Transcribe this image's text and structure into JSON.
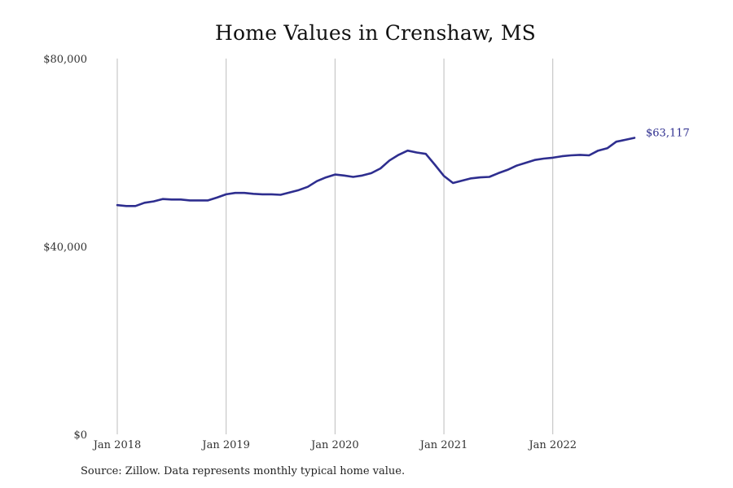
{
  "chart_data": {
    "type": "line",
    "title": "Home Values in Crenshaw, MS",
    "xlabel": "",
    "ylabel": "",
    "x_tick_labels": [
      "Jan 2018",
      "Jan 2019",
      "Jan 2020",
      "Jan 2021",
      "Jan 2022"
    ],
    "y_tick_labels": [
      "$0",
      "$40,000",
      "$80,000"
    ],
    "y_ticks": [
      0,
      40000,
      80000
    ],
    "ylim": [
      0,
      80000
    ],
    "x_range": [
      "2018-01",
      "2022-10"
    ],
    "grid": "vertical lines at January of each year",
    "legend": "none",
    "end_label": "$63,117",
    "line_color": "#2e2e8f",
    "series": [
      {
        "x": [
          "2018-01",
          "2018-02",
          "2018-03",
          "2018-04",
          "2018-05",
          "2018-06",
          "2018-07",
          "2018-08",
          "2018-09",
          "2018-10",
          "2018-11",
          "2018-12",
          "2019-01",
          "2019-02",
          "2019-03",
          "2019-04",
          "2019-05",
          "2019-06",
          "2019-07",
          "2019-08",
          "2019-09",
          "2019-10",
          "2019-11",
          "2019-12",
          "2020-01",
          "2020-02",
          "2020-03",
          "2020-04",
          "2020-05",
          "2020-06",
          "2020-07",
          "2020-08",
          "2020-09",
          "2020-10",
          "2020-11",
          "2020-12",
          "2021-01",
          "2021-02",
          "2021-03",
          "2021-04",
          "2021-05",
          "2021-06",
          "2021-07",
          "2021-08",
          "2021-09",
          "2021-10",
          "2021-11",
          "2021-12",
          "2022-01",
          "2022-02",
          "2022-03",
          "2022-04",
          "2022-05",
          "2022-06",
          "2022-07",
          "2022-08",
          "2022-09",
          "2022-10"
        ],
        "values": [
          48800,
          48600,
          48600,
          49300,
          49600,
          50100,
          50000,
          50000,
          49800,
          49800,
          49800,
          50400,
          51100,
          51400,
          51400,
          51200,
          51100,
          51100,
          51000,
          51500,
          52000,
          52700,
          53900,
          54700,
          55300,
          55100,
          54800,
          55100,
          55600,
          56600,
          58300,
          59500,
          60400,
          60000,
          59700,
          57400,
          55000,
          53500,
          54000,
          54500,
          54700,
          54800,
          55600,
          56300,
          57200,
          57800,
          58400,
          58700,
          58900,
          59200,
          59400,
          59500,
          59400,
          60400,
          60900,
          62300,
          62700,
          63117
        ]
      }
    ]
  }
}
